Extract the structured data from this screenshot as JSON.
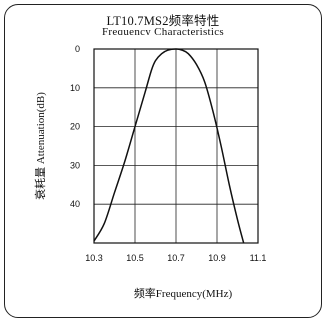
{
  "chart_data": {
    "type": "line",
    "title": "LT10.7MS2频率特性",
    "subtitle": "Frequency Characteristics",
    "xlabel": "频率Frequency(MHz)",
    "ylabel": "衰耗量 Attenuation(dB)",
    "x_ticks": [
      "10.3",
      "10.5",
      "10.7",
      "10.9",
      "11.1"
    ],
    "y_ticks": [
      "0",
      "10",
      "20",
      "30",
      "40"
    ],
    "xlim": [
      10.3,
      11.1
    ],
    "ylim": [
      0,
      50
    ],
    "y_inverted": true,
    "grid": true,
    "series": [
      {
        "x": [
          10.3,
          10.35,
          10.4,
          10.45,
          10.5,
          10.55,
          10.58,
          10.6,
          10.63,
          10.66,
          10.7,
          10.73,
          10.76,
          10.8,
          10.84,
          10.88,
          10.92,
          10.96,
          11.0,
          11.03
        ],
        "y": [
          49.5,
          45.0,
          37.0,
          29.0,
          20.0,
          11.0,
          5.5,
          3.0,
          1.2,
          0.3,
          0.0,
          0.3,
          1.2,
          4.0,
          8.5,
          16.0,
          25.0,
          35.0,
          44.0,
          50.0
        ]
      }
    ]
  }
}
